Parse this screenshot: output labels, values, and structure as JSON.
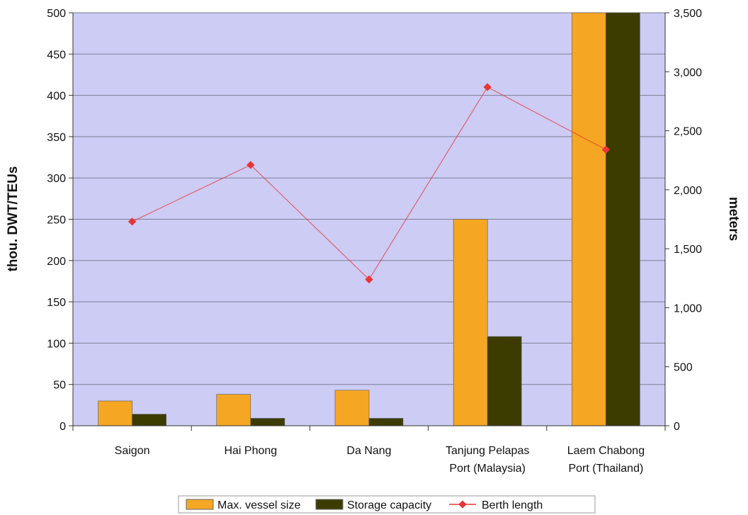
{
  "chart_data": {
    "type": "bar",
    "categories": [
      [
        "Saigon"
      ],
      [
        "Hai Phong"
      ],
      [
        "Da Nang"
      ],
      [
        "Tanjung Pelapas",
        "Port (Malaysia)"
      ],
      [
        "Laem Chabong",
        "Port (Thailand)"
      ]
    ],
    "ylabel_left": "thou. DWT/TEUs",
    "ylabel_right": "meters",
    "ylim_left": [
      0,
      500
    ],
    "ylim_right": [
      0,
      3500
    ],
    "yticks_left": [
      0,
      50,
      100,
      150,
      200,
      250,
      300,
      350,
      400,
      450,
      500
    ],
    "yticks_right": [
      "0",
      "500",
      "1,000",
      "1,500",
      "2,000",
      "2,500",
      "3,000",
      "3,500"
    ],
    "ytick_values_right": [
      0,
      500,
      1000,
      1500,
      2000,
      2500,
      3000,
      3500
    ],
    "grid": "horizontal",
    "legend_position": "bottom",
    "series": [
      {
        "name": "Max. vessel size",
        "type": "bar",
        "axis": "left",
        "color": "#f5a623",
        "values": [
          30,
          38,
          43,
          250,
          500
        ]
      },
      {
        "name": "Storage capacity",
        "type": "bar",
        "axis": "left",
        "color": "#3c3c00",
        "values": [
          14,
          9,
          9,
          108,
          500
        ]
      },
      {
        "name": "Berth length",
        "type": "line",
        "axis": "right",
        "color": "#e83535",
        "values": [
          1730,
          2210,
          1240,
          2870,
          2340
        ]
      }
    ],
    "plot_background": "#ccccf5"
  }
}
